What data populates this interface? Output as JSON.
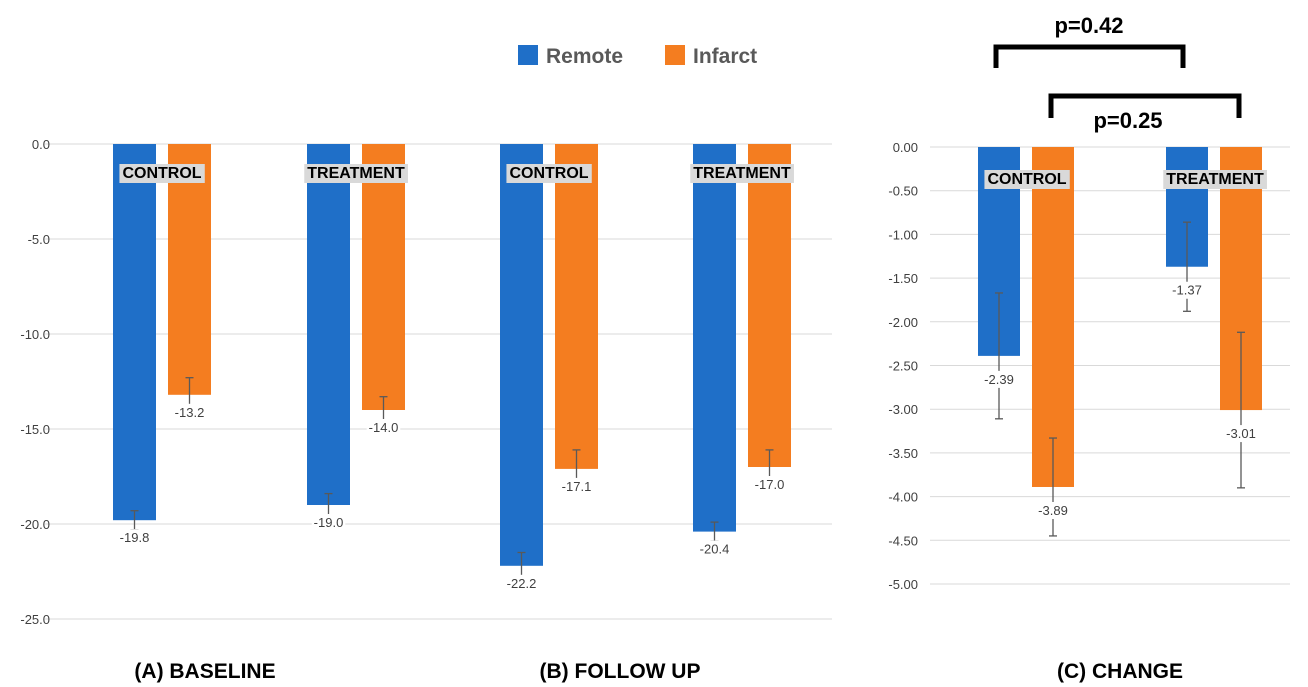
{
  "legend": [
    {
      "name": "Remote",
      "color": "#1f6fc8"
    },
    {
      "name": "Infarct",
      "color": "#f47d20"
    }
  ],
  "colors": {
    "grid": "#d9d9d9",
    "error_bar": "#595959",
    "label_bg": "#d9d9d9"
  },
  "chart_data": [
    {
      "type": "bar",
      "panel_title": "(A) BASELINE",
      "categories": [
        "CONTROL",
        "TREATMENT"
      ],
      "series": [
        {
          "name": "Remote",
          "values": [
            -19.8,
            -19.0
          ],
          "errors": [
            0.5,
            0.6
          ]
        },
        {
          "name": "Infarct",
          "values": [
            -13.2,
            -14.0
          ],
          "errors": [
            0.9,
            0.7
          ]
        }
      ],
      "value_labels": [
        [
          "-19.8",
          "-19.0"
        ],
        [
          "-13.2",
          "-14.0"
        ]
      ],
      "ylim": [
        -25,
        0
      ],
      "yticks": [
        "0.0",
        "-5.0",
        "-10.0",
        "-15.0",
        "-20.0",
        "-25.0"
      ],
      "grid": true
    },
    {
      "type": "bar",
      "panel_title": "(B) FOLLOW UP",
      "categories": [
        "CONTROL",
        "TREATMENT"
      ],
      "series": [
        {
          "name": "Remote",
          "values": [
            -22.2,
            -20.4
          ],
          "errors": [
            0.7,
            0.5
          ]
        },
        {
          "name": "Infarct",
          "values": [
            -17.1,
            -17.0
          ],
          "errors": [
            1.0,
            0.9
          ]
        }
      ],
      "value_labels": [
        [
          "-22.2",
          "-20.4"
        ],
        [
          "-17.1",
          "-17.0"
        ]
      ],
      "ylim": [
        -25,
        0
      ],
      "grid": true
    },
    {
      "type": "bar",
      "panel_title": "(C) CHANGE",
      "categories": [
        "CONTROL",
        "TREATMENT"
      ],
      "series": [
        {
          "name": "Remote",
          "values": [
            -2.39,
            -1.37
          ],
          "errors": [
            0.72,
            0.51
          ]
        },
        {
          "name": "Infarct",
          "values": [
            -3.89,
            -3.01
          ],
          "errors": [
            0.56,
            0.89
          ]
        }
      ],
      "value_labels": [
        [
          "-2.39",
          "-1.37"
        ],
        [
          "-3.89",
          "-3.01"
        ]
      ],
      "ylim": [
        -5,
        0
      ],
      "yticks": [
        "0.00",
        "-0.50",
        "-1.00",
        "-1.50",
        "-2.00",
        "-2.50",
        "-3.00",
        "-3.50",
        "-4.00",
        "-4.50",
        "-5.00"
      ],
      "grid": true,
      "comparisons": [
        {
          "label": "p=0.42"
        },
        {
          "label": "p=0.25"
        }
      ]
    }
  ]
}
